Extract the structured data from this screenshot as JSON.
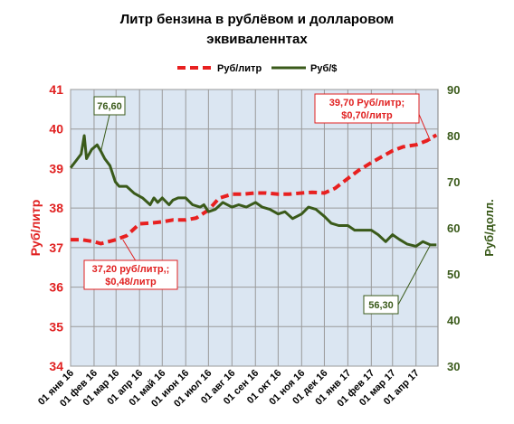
{
  "chart_data": {
    "type": "line",
    "title_line1": "Литр бензина в рублёвом и долларовом",
    "title_line2": "эквиваленнтах",
    "xlabel": "",
    "ylabel_left": "Руб/литр",
    "ylabel_right": "Руб/долл.",
    "y_left_lim": [
      34,
      41
    ],
    "y_left_ticks": [
      "34",
      "35",
      "36",
      "37",
      "38",
      "39",
      "40",
      "41"
    ],
    "y_right_lim": [
      30,
      90
    ],
    "y_right_ticks": [
      "30",
      "40",
      "50",
      "60",
      "70",
      "80",
      "90"
    ],
    "x_tick_labels": [
      "01 янв 16",
      "01 фев 16",
      "01 мар 16",
      "01 апр 16",
      "01 май 16",
      "01 июн 16",
      "01 июл 16",
      "01 авг 16",
      "01 сен 16",
      "01 окт 16",
      "01 ноя 16",
      "01 дек 16",
      "01 янв 17",
      "01 фев 17",
      "01 мар 17",
      "01 апр 17"
    ],
    "grid": true,
    "legend_placement": "top-center",
    "series": [
      {
        "name": "Руб/литр",
        "axis": "left",
        "color": "#e82020",
        "style": "dashed",
        "points": [
          [
            "2016-01-01",
            37.2
          ],
          [
            "2016-01-15",
            37.2
          ],
          [
            "2016-02-01",
            37.15
          ],
          [
            "2016-02-10",
            37.1
          ],
          [
            "2016-02-20",
            37.15
          ],
          [
            "2016-03-01",
            37.2
          ],
          [
            "2016-03-15",
            37.3
          ],
          [
            "2016-04-01",
            37.6
          ],
          [
            "2016-04-15",
            37.62
          ],
          [
            "2016-05-01",
            37.65
          ],
          [
            "2016-05-15",
            37.7
          ],
          [
            "2016-06-01",
            37.7
          ],
          [
            "2016-06-15",
            37.75
          ],
          [
            "2016-07-01",
            37.95
          ],
          [
            "2016-07-15",
            38.25
          ],
          [
            "2016-08-01",
            38.35
          ],
          [
            "2016-08-15",
            38.35
          ],
          [
            "2016-09-01",
            38.38
          ],
          [
            "2016-09-15",
            38.38
          ],
          [
            "2016-10-01",
            38.35
          ],
          [
            "2016-10-15",
            38.35
          ],
          [
            "2016-11-01",
            38.38
          ],
          [
            "2016-11-15",
            38.4
          ],
          [
            "2016-12-01",
            38.38
          ],
          [
            "2016-12-15",
            38.5
          ],
          [
            "2017-01-01",
            38.75
          ],
          [
            "2017-01-15",
            38.95
          ],
          [
            "2017-02-01",
            39.15
          ],
          [
            "2017-02-15",
            39.3
          ],
          [
            "2017-03-01",
            39.45
          ],
          [
            "2017-03-15",
            39.55
          ],
          [
            "2017-04-01",
            39.6
          ],
          [
            "2017-04-15",
            39.7
          ],
          [
            "2017-04-28",
            39.85
          ]
        ]
      },
      {
        "name": "Руб/$",
        "axis": "right",
        "color": "#3a5a1a",
        "style": "solid",
        "points": [
          [
            "2016-01-01",
            73.0
          ],
          [
            "2016-01-08",
            74.5
          ],
          [
            "2016-01-15",
            76.0
          ],
          [
            "2016-01-19",
            80.0
          ],
          [
            "2016-01-22",
            75.0
          ],
          [
            "2016-01-29",
            77.0
          ],
          [
            "2016-02-05",
            78.0
          ],
          [
            "2016-02-10",
            76.6
          ],
          [
            "2016-02-15",
            75.0
          ],
          [
            "2016-02-22",
            73.5
          ],
          [
            "2016-02-29",
            70.0
          ],
          [
            "2016-03-05",
            69.0
          ],
          [
            "2016-03-15",
            69.0
          ],
          [
            "2016-03-25",
            67.5
          ],
          [
            "2016-04-05",
            66.5
          ],
          [
            "2016-04-15",
            65.0
          ],
          [
            "2016-04-20",
            66.5
          ],
          [
            "2016-04-25",
            65.5
          ],
          [
            "2016-05-01",
            66.5
          ],
          [
            "2016-05-10",
            65.0
          ],
          [
            "2016-05-15",
            66.0
          ],
          [
            "2016-05-22",
            66.5
          ],
          [
            "2016-06-01",
            66.5
          ],
          [
            "2016-06-10",
            65.0
          ],
          [
            "2016-06-20",
            64.5
          ],
          [
            "2016-06-25",
            65.0
          ],
          [
            "2016-07-01",
            63.5
          ],
          [
            "2016-07-10",
            64.0
          ],
          [
            "2016-07-20",
            65.5
          ],
          [
            "2016-08-01",
            64.5
          ],
          [
            "2016-08-10",
            65.0
          ],
          [
            "2016-08-20",
            64.5
          ],
          [
            "2016-09-01",
            65.5
          ],
          [
            "2016-09-10",
            64.5
          ],
          [
            "2016-09-20",
            64.0
          ],
          [
            "2016-10-01",
            63.0
          ],
          [
            "2016-10-10",
            63.5
          ],
          [
            "2016-10-20",
            62.0
          ],
          [
            "2016-11-01",
            63.0
          ],
          [
            "2016-11-10",
            64.5
          ],
          [
            "2016-11-20",
            64.0
          ],
          [
            "2016-12-01",
            62.5
          ],
          [
            "2016-12-10",
            61.0
          ],
          [
            "2016-12-20",
            60.5
          ],
          [
            "2017-01-01",
            60.5
          ],
          [
            "2017-01-10",
            59.5
          ],
          [
            "2017-01-20",
            59.5
          ],
          [
            "2017-02-01",
            59.5
          ],
          [
            "2017-02-10",
            58.5
          ],
          [
            "2017-02-20",
            57.0
          ],
          [
            "2017-03-01",
            58.5
          ],
          [
            "2017-03-10",
            57.5
          ],
          [
            "2017-03-20",
            56.5
          ],
          [
            "2017-04-01",
            56.0
          ],
          [
            "2017-04-10",
            57.0
          ],
          [
            "2017-04-20",
            56.3
          ],
          [
            "2017-04-28",
            56.3
          ]
        ]
      }
    ],
    "annotations": [
      {
        "id": "ann-usd-max",
        "text_lines": [
          "76,60"
        ],
        "color": "#3a5a1a",
        "anchor_date": "2016-02-10",
        "anchor_value": 76.6,
        "axis": "right"
      },
      {
        "id": "ann-start",
        "text_lines": [
          "37,20 руб/литр,;",
          "$0,48/литр"
        ],
        "color": "#e02020",
        "anchor_date": "2016-03-10",
        "anchor_value": 37.2,
        "axis": "left"
      },
      {
        "id": "ann-end",
        "text_lines": [
          "39,70 Руб/литр;",
          "$0,70/литр"
        ],
        "color": "#e02020",
        "anchor_date": "2017-04-20",
        "anchor_value": 39.7,
        "axis": "left"
      },
      {
        "id": "ann-usd-end",
        "text_lines": [
          "56,30"
        ],
        "color": "#3a5a1a",
        "anchor_date": "2017-04-20",
        "anchor_value": 56.3,
        "axis": "right"
      }
    ]
  }
}
